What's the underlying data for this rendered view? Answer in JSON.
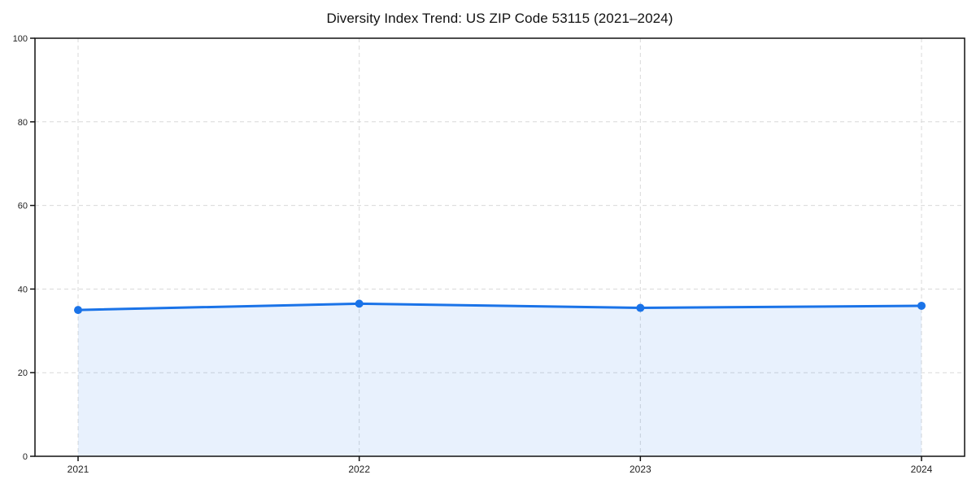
{
  "chart_data": {
    "type": "area",
    "title": "Diversity Index Trend: US ZIP Code 53115 (2021–2024)",
    "categories": [
      "2021",
      "2022",
      "2023",
      "2024"
    ],
    "series": [
      {
        "name": "Diversity Index",
        "values": [
          35.0,
          36.5,
          35.5,
          36.0
        ]
      }
    ],
    "xlabel": "",
    "ylabel": "",
    "ylim": [
      0,
      100
    ],
    "yticks": [
      0,
      20,
      40,
      60,
      80,
      100
    ],
    "grid": "dashed-both-axes",
    "legend_position": "none",
    "line_color": "#1a73e8",
    "marker": "circle",
    "marker_color": "#1a73e8",
    "fill_color": "rgba(26,115,232,0.10)",
    "grid_color": "#d9d9d9",
    "axis_color": "#111111"
  }
}
